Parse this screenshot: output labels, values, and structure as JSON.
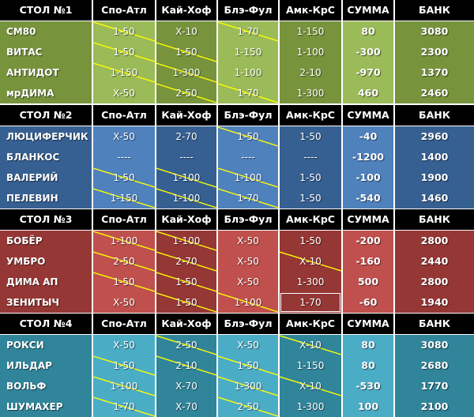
{
  "columns": [
    "Спо-Атл",
    "Кай-Хоф",
    "Блэ-Фул",
    "Амк-КрС",
    "СУММА",
    "БАНК"
  ],
  "tables": [
    {
      "title": "СТОЛ №1",
      "color_dark": "#77933c",
      "color_light": "#9bbb59",
      "rows": [
        {
          "name": "СМ80",
          "bets": [
            "1-50",
            "Х-10",
            "1-70",
            "1-150"
          ],
          "strike": [
            true,
            false,
            true,
            false
          ],
          "sum": "80",
          "bank": "3080"
        },
        {
          "name": "ВИТАС",
          "bets": [
            "1-50",
            "1-50",
            "1-150",
            "1-100"
          ],
          "strike": [
            true,
            true,
            false,
            false
          ],
          "sum": "-300",
          "bank": "2300"
        },
        {
          "name": "АНТИДОТ",
          "bets": [
            "1-150",
            "1-300",
            "1-100",
            "2-10"
          ],
          "strike": [
            true,
            true,
            false,
            false
          ],
          "sum": "-970",
          "bank": "1370"
        },
        {
          "name": "мрДИМА",
          "bets": [
            "Х-50",
            "2-50",
            "1-70",
            "1-300"
          ],
          "strike": [
            false,
            true,
            true,
            false
          ],
          "sum": "460",
          "bank": "2460"
        }
      ]
    },
    {
      "title": "СТОЛ №2",
      "color_dark": "#366092",
      "color_light": "#4f81bd",
      "rows": [
        {
          "name": "ЛЮЦИФЕРЧИК",
          "bets": [
            "Х-50",
            "2-70",
            "1-50",
            "1-50"
          ],
          "strike": [
            false,
            false,
            true,
            false
          ],
          "sum": "-40",
          "bank": "2960"
        },
        {
          "name": "БЛАНКОС",
          "bets": [
            "----",
            "----",
            "----",
            "----"
          ],
          "strike": [
            false,
            false,
            false,
            false
          ],
          "sum": "-1200",
          "bank": "1400"
        },
        {
          "name": "ВАЛЕРИЙ",
          "bets": [
            "1-50",
            "1-100",
            "1-100",
            "1-50"
          ],
          "strike": [
            true,
            true,
            true,
            false
          ],
          "sum": "-100",
          "bank": "1900"
        },
        {
          "name": "ПЕЛЕВИН",
          "bets": [
            "1-150",
            "1-100",
            "1-70",
            "1-50"
          ],
          "strike": [
            true,
            true,
            true,
            false
          ],
          "sum": "-540",
          "bank": "1460"
        }
      ]
    },
    {
      "title": "СТОЛ №3",
      "color_dark": "#953735",
      "color_light": "#c0504d",
      "rows": [
        {
          "name": "БОБЁР",
          "bets": [
            "1-100",
            "1-100",
            "Х-50",
            "1-50"
          ],
          "strike": [
            true,
            true,
            false,
            false
          ],
          "sum": "-200",
          "bank": "2800"
        },
        {
          "name": "УМБРО",
          "bets": [
            "2-50",
            "2-70",
            "Х-50",
            "Х-10"
          ],
          "strike": [
            true,
            true,
            false,
            true
          ],
          "sum": "-160",
          "bank": "2440"
        },
        {
          "name": "ДИМА АП",
          "bets": [
            "1-50",
            "1-50",
            "Х-50",
            "1-300"
          ],
          "strike": [
            true,
            true,
            false,
            false
          ],
          "sum": "500",
          "bank": "2800"
        },
        {
          "name": "ЗЕНИТЫЧ",
          "bets": [
            "Х-50",
            "1-50",
            "1-100",
            "1-70"
          ],
          "strike": [
            false,
            true,
            true,
            false
          ],
          "sum": "-60",
          "bank": "1940"
        }
      ]
    },
    {
      "title": "СТОЛ №4",
      "color_dark": "#31859b",
      "color_light": "#4bacc6",
      "rows": [
        {
          "name": "РОКСИ",
          "bets": [
            "Х-50",
            "2-50",
            "Х-50",
            "Х-10"
          ],
          "strike": [
            false,
            true,
            false,
            true
          ],
          "sum": "80",
          "bank": "3080"
        },
        {
          "name": "ИЛЬДАР",
          "bets": [
            "1-50",
            "2-10",
            "1-50",
            "1-150"
          ],
          "strike": [
            true,
            true,
            true,
            false
          ],
          "sum": "80",
          "bank": "2680"
        },
        {
          "name": "ВОЛЬФ",
          "bets": [
            "1-100",
            "Х-70",
            "1-300",
            "Х-10"
          ],
          "strike": [
            true,
            false,
            true,
            true
          ],
          "sum": "-530",
          "bank": "1770"
        },
        {
          "name": "ШУМАХЕР",
          "bets": [
            "1-70",
            "Х-70",
            "2-50",
            "1-300"
          ],
          "strike": [
            true,
            false,
            true,
            false
          ],
          "sum": "100",
          "bank": "2100"
        }
      ]
    }
  ],
  "strike_color": "#ffff00"
}
